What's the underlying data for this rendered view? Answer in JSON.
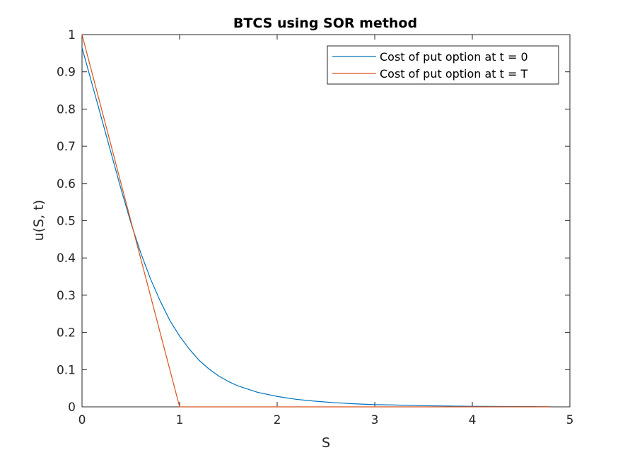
{
  "chart_data": {
    "type": "line",
    "title": "BTCS using SOR method",
    "xlabel": "S",
    "ylabel": "u(S, t)",
    "xlim": [
      0,
      5
    ],
    "ylim": [
      0,
      1
    ],
    "xticks": [
      0,
      1,
      2,
      3,
      4,
      5
    ],
    "xtick_labels": [
      "0",
      "1",
      "2",
      "3",
      "4",
      "5"
    ],
    "yticks": [
      0,
      0.1,
      0.2,
      0.3,
      0.4,
      0.5,
      0.6,
      0.7,
      0.8,
      0.9,
      1
    ],
    "ytick_labels": [
      "0",
      "0.1",
      "0.2",
      "0.3",
      "0.4",
      "0.5",
      "0.6",
      "0.7",
      "0.8",
      "0.9",
      "1"
    ],
    "grid": false,
    "legend_position": "top-right",
    "series": [
      {
        "name": "Cost of put option at t = 0",
        "color": "#0072BD",
        "x": [
          0,
          0.1,
          0.2,
          0.3,
          0.4,
          0.5,
          0.6,
          0.7,
          0.8,
          0.9,
          1.0,
          1.1,
          1.2,
          1.3,
          1.4,
          1.5,
          1.6,
          1.8,
          2.0,
          2.2,
          2.4,
          2.6,
          2.8,
          3.0,
          3.2,
          3.5,
          3.8,
          4.0,
          4.3,
          4.6,
          4.8
        ],
        "y": [
          0.965,
          0.87,
          0.775,
          0.68,
          0.585,
          0.495,
          0.415,
          0.345,
          0.285,
          0.232,
          0.19,
          0.155,
          0.125,
          0.102,
          0.083,
          0.068,
          0.056,
          0.039,
          0.028,
          0.02,
          0.015,
          0.011,
          0.008,
          0.006,
          0.005,
          0.003,
          0.002,
          0.0015,
          0.001,
          0.0007,
          0.0005
        ]
      },
      {
        "name": "Cost of put option at t = T",
        "color": "#D95319",
        "x": [
          0,
          1,
          4.8
        ],
        "y": [
          1,
          0,
          0
        ]
      }
    ]
  }
}
